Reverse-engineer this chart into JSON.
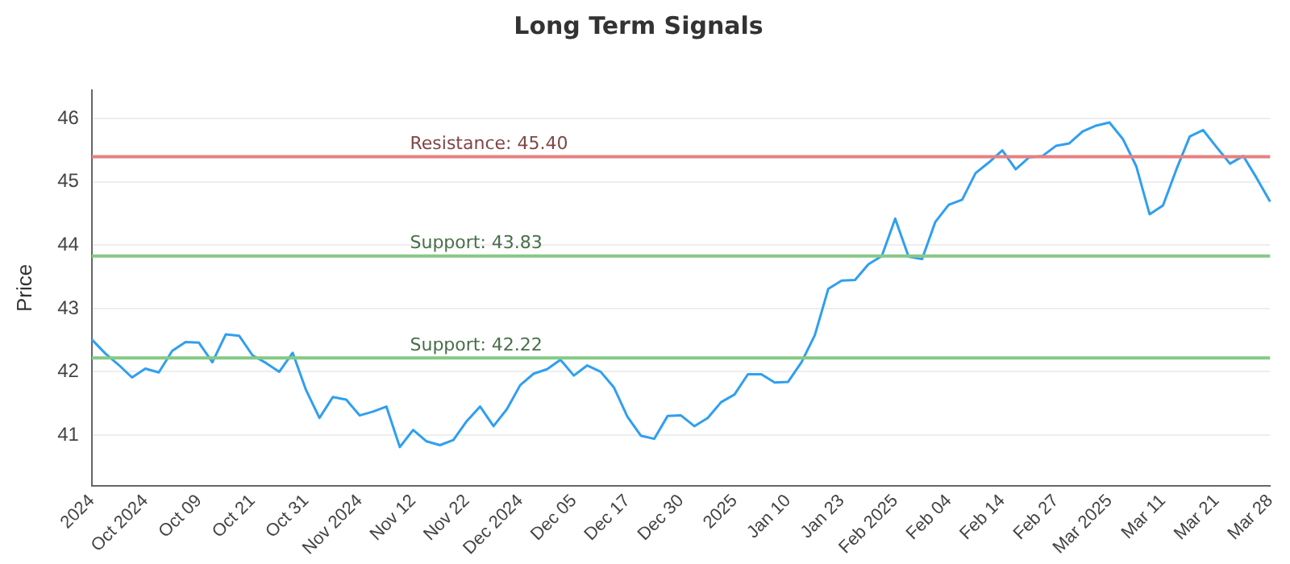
{
  "chart_data": {
    "type": "line",
    "title": "Long Term Signals",
    "ylabel": "Price",
    "categories": [
      "2024",
      null,
      null,
      null,
      "Oct 2024",
      null,
      null,
      null,
      "Oct 09",
      null,
      null,
      null,
      "Oct 21",
      null,
      null,
      null,
      "Oct 31",
      null,
      null,
      null,
      "Nov 2024",
      null,
      null,
      null,
      "Nov 12",
      null,
      null,
      null,
      "Nov 22",
      null,
      null,
      null,
      "Dec 2024",
      null,
      null,
      null,
      "Dec 05",
      null,
      null,
      null,
      "Dec 17",
      null,
      null,
      null,
      "Dec 30",
      null,
      null,
      null,
      "2025",
      null,
      null,
      null,
      "Jan 10",
      null,
      null,
      null,
      "Jan 23",
      null,
      null,
      null,
      "Feb 2025",
      null,
      null,
      null,
      "Feb 04",
      null,
      null,
      null,
      "Feb 14",
      null,
      null,
      null,
      "Feb 27",
      null,
      null,
      null,
      "Mar 2025",
      null,
      null,
      null,
      "Mar 11",
      null,
      null,
      null,
      "Mar 21",
      null,
      null,
      null,
      "Mar 28"
    ],
    "series": [
      {
        "color": "#2f9ff0",
        "values": [
          42.51,
          42.29,
          42.11,
          41.91,
          42.05,
          41.99,
          42.33,
          42.47,
          42.46,
          42.15,
          42.59,
          42.57,
          42.26,
          42.14,
          42.0,
          42.3,
          41.71,
          41.27,
          41.6,
          41.56,
          41.31,
          41.37,
          41.45,
          40.81,
          41.08,
          40.9,
          40.84,
          40.92,
          41.22,
          41.45,
          41.14,
          41.41,
          41.79,
          41.97,
          42.04,
          42.19,
          41.94,
          42.1,
          42.0,
          41.75,
          41.29,
          40.99,
          40.94,
          41.3,
          41.31,
          41.14,
          41.27,
          41.52,
          41.64,
          41.96,
          41.96,
          41.83,
          41.84,
          42.15,
          42.58,
          43.31,
          43.44,
          43.45,
          43.7,
          43.83,
          44.42,
          43.82,
          43.78,
          44.37,
          44.64,
          44.72,
          45.14,
          45.31,
          45.5,
          45.2,
          45.39,
          45.41,
          45.57,
          45.61,
          45.8,
          45.89,
          45.94,
          45.68,
          45.25,
          44.49,
          44.63,
          45.2,
          45.72,
          45.82,
          45.55,
          45.29,
          45.41,
          45.06,
          44.69
        ]
      }
    ],
    "ylim": [
      40.2,
      46.45
    ],
    "yticks": [
      41,
      42,
      43,
      44,
      45,
      46
    ],
    "grid": "y",
    "marker": "none",
    "line_style": "solid",
    "ref_lines": [
      {
        "axis": "y",
        "value": 45.4,
        "label": "Resistance: 45.40",
        "color": "#e88080"
      },
      {
        "axis": "y",
        "value": 43.83,
        "label": "Support: 43.83",
        "color": "#85c985"
      },
      {
        "axis": "y",
        "value": 42.22,
        "label": "Support: 42.22",
        "color": "#85c985"
      }
    ]
  }
}
